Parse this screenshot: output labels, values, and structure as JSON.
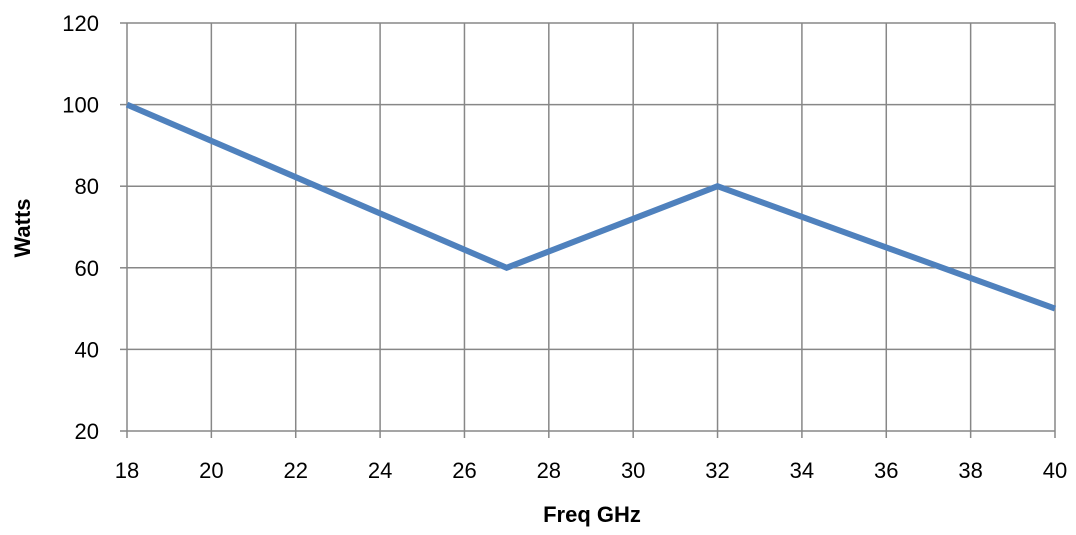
{
  "chart_data": {
    "type": "line",
    "title": "",
    "xlabel": "Freq GHz",
    "ylabel": "Watts",
    "xlim": [
      18,
      40
    ],
    "ylim": [
      20,
      120
    ],
    "xticks": [
      18,
      20,
      22,
      24,
      26,
      28,
      30,
      32,
      34,
      36,
      38,
      40
    ],
    "yticks": [
      20,
      40,
      60,
      80,
      100,
      120
    ],
    "grid": true,
    "legend": "none",
    "series": [
      {
        "color": "#4f81bd",
        "x": [
          18,
          27,
          32,
          40
        ],
        "y": [
          100,
          60,
          80,
          50
        ]
      }
    ]
  }
}
